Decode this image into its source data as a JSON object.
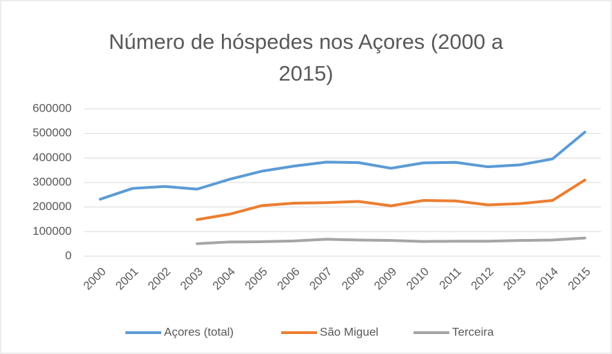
{
  "chart_data": {
    "type": "line",
    "title": "Número de hóspedes nos Açores (2000 a 2015)",
    "categories": [
      "2000",
      "2001",
      "2002",
      "2003",
      "2004",
      "2005",
      "2006",
      "2007",
      "2008",
      "2009",
      "2010",
      "2011",
      "2012",
      "2013",
      "2014",
      "2015"
    ],
    "series": [
      {
        "name": "Açores (total)",
        "color": "#5b9bd5",
        "values": [
          232000,
          276000,
          284000,
          273000,
          313000,
          346000,
          367000,
          383000,
          381000,
          358000,
          380000,
          382000,
          364000,
          372000,
          396000,
          505000
        ]
      },
      {
        "name": "São Miguel",
        "color": "#ed7d31",
        "values": [
          null,
          null,
          null,
          149000,
          171000,
          206000,
          216000,
          218000,
          223000,
          205000,
          227000,
          225000,
          209000,
          214000,
          227000,
          310000
        ]
      },
      {
        "name": "Terceira",
        "color": "#a5a5a5",
        "values": [
          null,
          null,
          null,
          51000,
          58000,
          59000,
          62000,
          69000,
          66000,
          64000,
          60000,
          61000,
          61000,
          64000,
          66000,
          74000
        ]
      }
    ],
    "ylim": [
      0,
      600000
    ],
    "yticks": [
      0,
      100000,
      200000,
      300000,
      400000,
      500000,
      600000
    ],
    "grid": true,
    "legend": "bottom"
  }
}
